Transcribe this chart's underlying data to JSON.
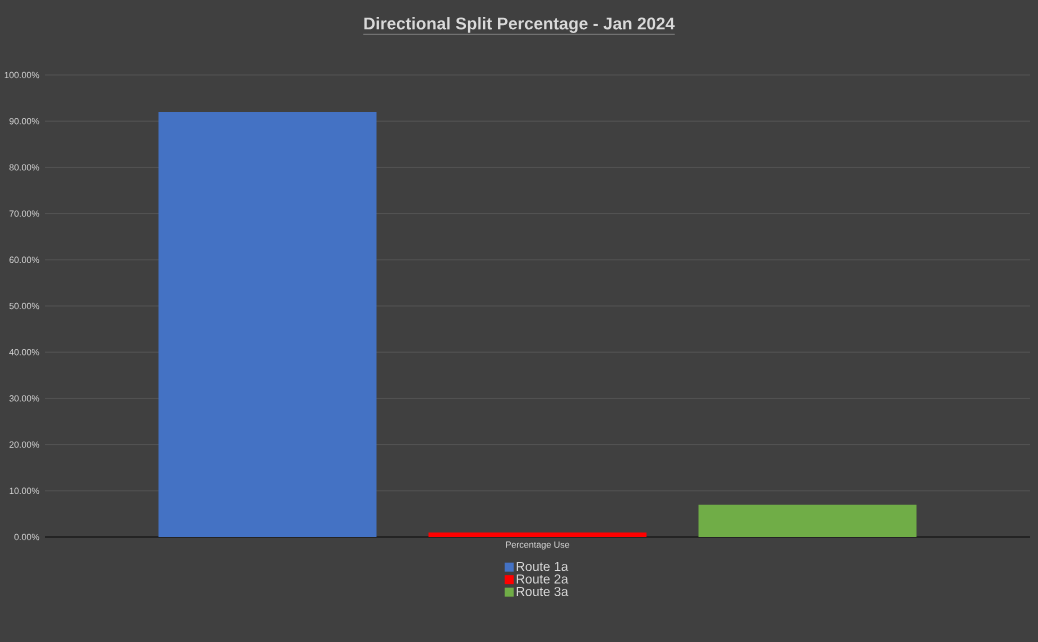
{
  "chart_data": {
    "type": "bar",
    "title": "Directional Split Percentage - Jan 2024",
    "categories": [
      "Percentage Use"
    ],
    "series": [
      {
        "name": "Route 1a",
        "color": "#4472c4",
        "values": [
          92
        ]
      },
      {
        "name": "Route 2a",
        "color": "#ff0000",
        "values": [
          1
        ]
      },
      {
        "name": "Route 3a",
        "color": "#70ad47",
        "values": [
          7
        ]
      }
    ],
    "ylim": [
      0,
      100
    ],
    "yticks": [
      {
        "value": 0,
        "label": "0.00%"
      },
      {
        "value": 10,
        "label": "10.00%"
      },
      {
        "value": 20,
        "label": "20.00%"
      },
      {
        "value": 30,
        "label": "30.00%"
      },
      {
        "value": 40,
        "label": "40.00%"
      },
      {
        "value": 50,
        "label": "50.00%"
      },
      {
        "value": 60,
        "label": "60.00%"
      },
      {
        "value": 70,
        "label": "70.00%"
      },
      {
        "value": 80,
        "label": "80.00%"
      },
      {
        "value": 90,
        "label": "90.00%"
      },
      {
        "value": 100,
        "label": "100.00%"
      }
    ],
    "grid": "y",
    "legend": "bottom"
  }
}
